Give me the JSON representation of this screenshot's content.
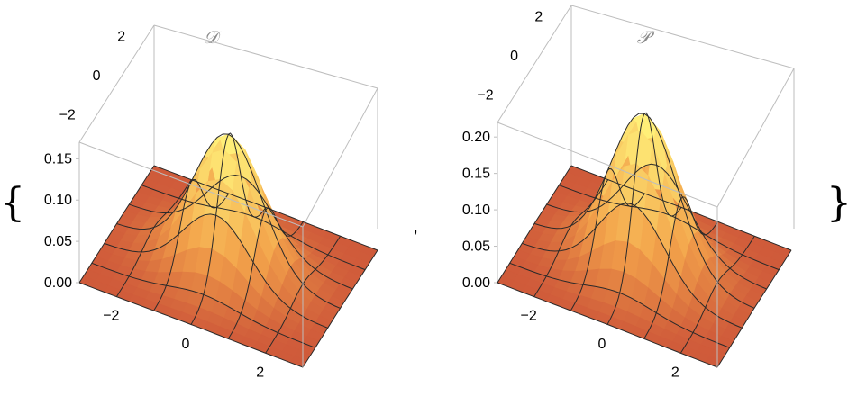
{
  "open_brace": "{",
  "separator": ",",
  "close_brace": "}",
  "colors": {
    "low": "#cf5a3a",
    "mid": "#f3a24a",
    "high": "#fff27a",
    "mesh": "#2a2a2a",
    "box": "#bdbdbd"
  },
  "chart_data": [
    {
      "type": "surface3d",
      "title": "𝒟",
      "x": [
        -3,
        -2,
        -1,
        0,
        1,
        2,
        3
      ],
      "y": [
        -3,
        -2,
        -1,
        0,
        1,
        2,
        3
      ],
      "x_ticks": [
        "−2",
        "0",
        "2"
      ],
      "y_ticks": [
        "−2",
        "0",
        "2"
      ],
      "z_ticks": [
        "0.00",
        "0.05",
        "0.10",
        "0.15"
      ],
      "zlim": [
        0,
        0.17
      ],
      "peak": {
        "x": 0,
        "y": 0,
        "z": 0.16
      }
    },
    {
      "type": "surface3d",
      "title": "𝒫",
      "x": [
        -3,
        -2,
        -1,
        0,
        1,
        2,
        3
      ],
      "y": [
        -3,
        -2,
        -1,
        0,
        1,
        2,
        3
      ],
      "x_ticks": [
        "−2",
        "0",
        "2"
      ],
      "y_ticks": [
        "−2",
        "0",
        "2"
      ],
      "z_ticks": [
        "0.00",
        "0.05",
        "0.10",
        "0.15",
        "0.20"
      ],
      "zlim": [
        0,
        0.22
      ],
      "peak": {
        "x": 0,
        "y": 0,
        "z": 0.21
      }
    }
  ]
}
